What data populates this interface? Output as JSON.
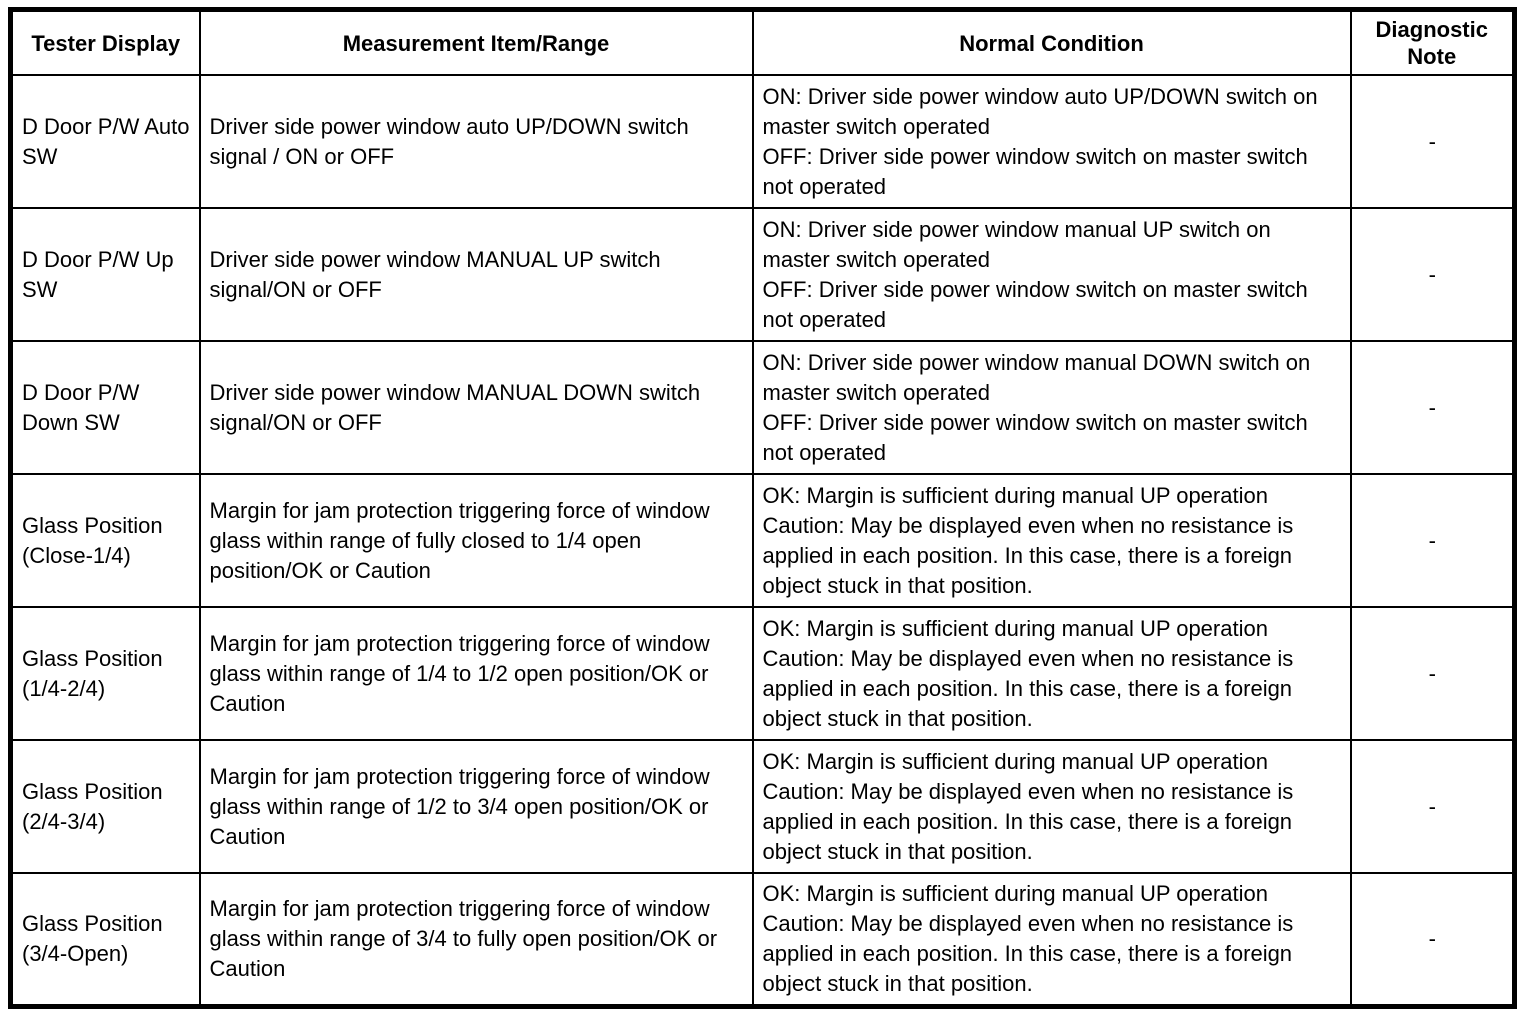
{
  "table": {
    "headers": [
      "Tester Display",
      "Measurement Item/Range",
      "Normal Condition",
      "Diagnostic Note"
    ],
    "rows": [
      {
        "display": "D Door P/W Auto SW",
        "item": "Driver side power window auto UP/DOWN switch signal / ON or OFF",
        "condition": [
          "ON: Driver side power window auto UP/DOWN switch on master switch operated",
          "OFF: Driver side power window switch on master switch not operated"
        ],
        "note": "-"
      },
      {
        "display": "D Door P/W Up SW",
        "item": "Driver side power window MANUAL UP switch signal/ON or OFF",
        "condition": [
          "ON: Driver side power window manual UP switch on master switch operated",
          "OFF: Driver side power window switch on master switch not operated"
        ],
        "note": "-"
      },
      {
        "display": "D Door P/W Down SW",
        "item": "Driver side power window MANUAL DOWN switch signal/ON or OFF",
        "condition": [
          "ON: Driver side power window manual DOWN switch on master switch operated",
          "OFF: Driver side power window switch on master switch not operated"
        ],
        "note": "-"
      },
      {
        "display": "Glass Position (Close-1/4)",
        "item": "Margin for jam protection triggering force of window glass within range of fully closed to 1/4 open position/OK or Caution",
        "condition": [
          "OK: Margin is sufficient during manual UP operation",
          "Caution: May be displayed even when no resistance is applied in each position. In this case, there is a foreign object stuck in that position."
        ],
        "note": "-"
      },
      {
        "display": "Glass Position (1/4-2/4)",
        "item": "Margin for jam protection triggering force of window glass within range of 1/4 to 1/2 open position/OK or Caution",
        "condition": [
          "OK: Margin is sufficient during manual UP operation",
          "Caution: May be displayed even when no resistance is applied in each position. In this case, there is a foreign object stuck in that position."
        ],
        "note": "-"
      },
      {
        "display": "Glass Position (2/4-3/4)",
        "item": "Margin for jam protection triggering force of window glass within range of 1/2 to 3/4 open position/OK or Caution",
        "condition": [
          "OK: Margin is sufficient during manual UP operation",
          "Caution: May be displayed even when no resistance is applied in each position. In this case, there is a foreign object stuck in that position."
        ],
        "note": "-"
      },
      {
        "display": "Glass Position (3/4-Open)",
        "item": "Margin for jam protection triggering force of window glass within range of 3/4 to fully open position/OK or Caution",
        "condition": [
          "OK: Margin is sufficient during manual UP operation",
          "Caution: May be displayed even when no resistance is applied in each position. In this case, there is a foreign object stuck in that position."
        ],
        "note": "-"
      }
    ]
  }
}
